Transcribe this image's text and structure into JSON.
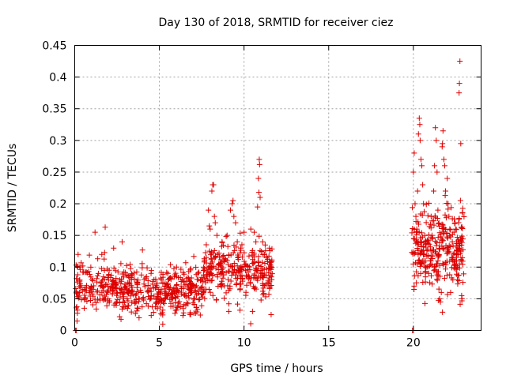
{
  "chart_data": {
    "type": "scatter",
    "title": "Day 130 of 2018, SRMTID for receiver ciez",
    "xlabel": "GPS time / hours",
    "ylabel": "SRMTID / TECUs",
    "xlim": [
      0,
      24
    ],
    "ylim": [
      0,
      0.45
    ],
    "xticks": [
      0,
      5,
      10,
      15,
      20
    ],
    "xtick_labels": [
      "0",
      "5",
      "10",
      "15",
      "20"
    ],
    "yticks": [
      0,
      0.05,
      0.1,
      0.15,
      0.2,
      0.25,
      0.3,
      0.35,
      0.4,
      0.45
    ],
    "ytick_labels": [
      "0",
      "0.05",
      "0.1",
      "0.15",
      "0.2",
      "0.25",
      "0.3",
      "0.35",
      "0.4",
      "0.45"
    ],
    "grid": true,
    "marker": "+",
    "color": "#dd0000",
    "series": [
      {
        "name": "SRMTID",
        "clusters": [
          {
            "x_start": 0.05,
            "x_end": 7.6,
            "y_center": 0.065,
            "y_spread": 0.03,
            "n": 520
          },
          {
            "x_start": 7.6,
            "x_end": 11.7,
            "y_center": 0.095,
            "y_spread": 0.035,
            "n": 300
          },
          {
            "x_start": 19.9,
            "x_end": 23.0,
            "y_center": 0.13,
            "y_spread": 0.05,
            "n": 300
          }
        ],
        "points": [
          [
            0.05,
            0.0
          ],
          [
            0.1,
            0.0
          ],
          [
            19.95,
            0.0
          ],
          [
            20.0,
            0.0
          ],
          [
            0.2,
            0.12
          ],
          [
            0.3,
            0.1
          ],
          [
            1.2,
            0.155
          ],
          [
            1.8,
            0.163
          ],
          [
            1.6,
            0.12
          ],
          [
            2.3,
            0.13
          ],
          [
            2.8,
            0.14
          ],
          [
            4.0,
            0.127
          ],
          [
            3.8,
            0.02
          ],
          [
            5.2,
            0.01
          ],
          [
            5.5,
            0.09
          ],
          [
            7.9,
            0.19
          ],
          [
            7.95,
            0.165
          ],
          [
            8.0,
            0.16
          ],
          [
            8.1,
            0.22
          ],
          [
            8.15,
            0.23
          ],
          [
            8.2,
            0.23
          ],
          [
            8.25,
            0.18
          ],
          [
            8.3,
            0.17
          ],
          [
            8.4,
            0.15
          ],
          [
            8.7,
            0.14
          ],
          [
            9.0,
            0.15
          ],
          [
            9.2,
            0.19
          ],
          [
            9.3,
            0.2
          ],
          [
            9.35,
            0.205
          ],
          [
            9.4,
            0.18
          ],
          [
            9.5,
            0.17
          ],
          [
            9.6,
            0.14
          ],
          [
            9.8,
            0.13
          ],
          [
            10.0,
            0.155
          ],
          [
            10.4,
            0.16
          ],
          [
            10.6,
            0.155
          ],
          [
            10.7,
            0.14
          ],
          [
            10.8,
            0.195
          ],
          [
            10.85,
            0.24
          ],
          [
            10.88,
            0.218
          ],
          [
            10.9,
            0.27
          ],
          [
            10.92,
            0.262
          ],
          [
            10.95,
            0.21
          ],
          [
            11.1,
            0.14
          ],
          [
            11.2,
            0.12
          ],
          [
            11.5,
            0.13
          ],
          [
            11.6,
            0.025
          ],
          [
            9.1,
            0.03
          ],
          [
            10.5,
            0.03
          ],
          [
            20.0,
            0.25
          ],
          [
            20.05,
            0.28
          ],
          [
            20.1,
            0.2
          ],
          [
            20.15,
            0.18
          ],
          [
            20.2,
            0.16
          ],
          [
            20.25,
            0.22
          ],
          [
            20.3,
            0.31
          ],
          [
            20.35,
            0.335
          ],
          [
            20.38,
            0.325
          ],
          [
            20.4,
            0.3
          ],
          [
            20.45,
            0.27
          ],
          [
            20.5,
            0.26
          ],
          [
            20.55,
            0.23
          ],
          [
            20.6,
            0.2
          ],
          [
            20.7,
            0.14
          ],
          [
            20.8,
            0.1
          ],
          [
            20.9,
            0.09
          ],
          [
            21.0,
            0.11
          ],
          [
            21.05,
            0.18
          ],
          [
            21.1,
            0.15
          ],
          [
            21.2,
            0.22
          ],
          [
            21.25,
            0.26
          ],
          [
            21.3,
            0.32
          ],
          [
            21.35,
            0.3
          ],
          [
            21.4,
            0.25
          ],
          [
            21.45,
            0.19
          ],
          [
            21.5,
            0.12
          ],
          [
            21.55,
            0.05
          ],
          [
            21.6,
            0.045
          ],
          [
            21.65,
            0.06
          ],
          [
            21.7,
            0.29
          ],
          [
            21.72,
            0.295
          ],
          [
            21.75,
            0.315
          ],
          [
            21.8,
            0.27
          ],
          [
            21.85,
            0.26
          ],
          [
            21.9,
            0.22
          ],
          [
            22.0,
            0.24
          ],
          [
            22.05,
            0.2
          ],
          [
            22.1,
            0.18
          ],
          [
            22.15,
            0.16
          ],
          [
            22.2,
            0.06
          ],
          [
            22.3,
            0.14
          ],
          [
            22.4,
            0.155
          ],
          [
            22.5,
            0.16
          ],
          [
            22.55,
            0.14
          ],
          [
            22.6,
            0.1
          ],
          [
            22.7,
            0.375
          ],
          [
            22.72,
            0.39
          ],
          [
            22.75,
            0.425
          ],
          [
            22.78,
            0.205
          ],
          [
            22.8,
            0.295
          ],
          [
            22.85,
            0.055
          ],
          [
            22.87,
            0.05
          ],
          [
            22.6,
            0.08
          ]
        ]
      }
    ]
  }
}
